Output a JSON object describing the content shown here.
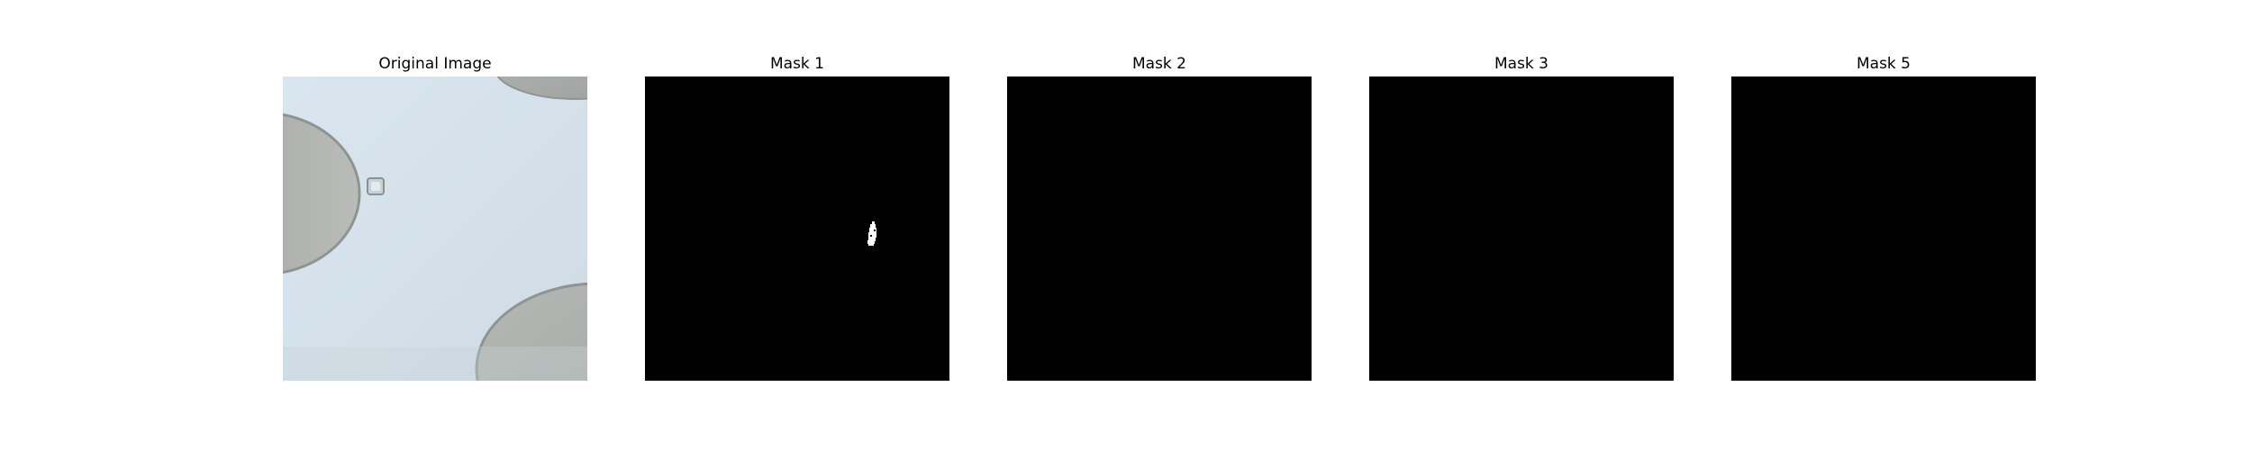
{
  "figure": {
    "panels": [
      {
        "title": "Original Image",
        "kind": "photo"
      },
      {
        "title": "Mask 1",
        "kind": "mask",
        "has_region": true
      },
      {
        "title": "Mask 2",
        "kind": "mask",
        "has_region": false
      },
      {
        "title": "Mask 3",
        "kind": "mask",
        "has_region": false
      },
      {
        "title": "Mask 5",
        "kind": "mask",
        "has_region": false
      }
    ]
  },
  "colors": {
    "background": "#ffffff",
    "mask_background": "#000000",
    "mask_region": "#ffffff",
    "photo_light": "#d6e3ec",
    "photo_shadow": "#a9adaa"
  }
}
